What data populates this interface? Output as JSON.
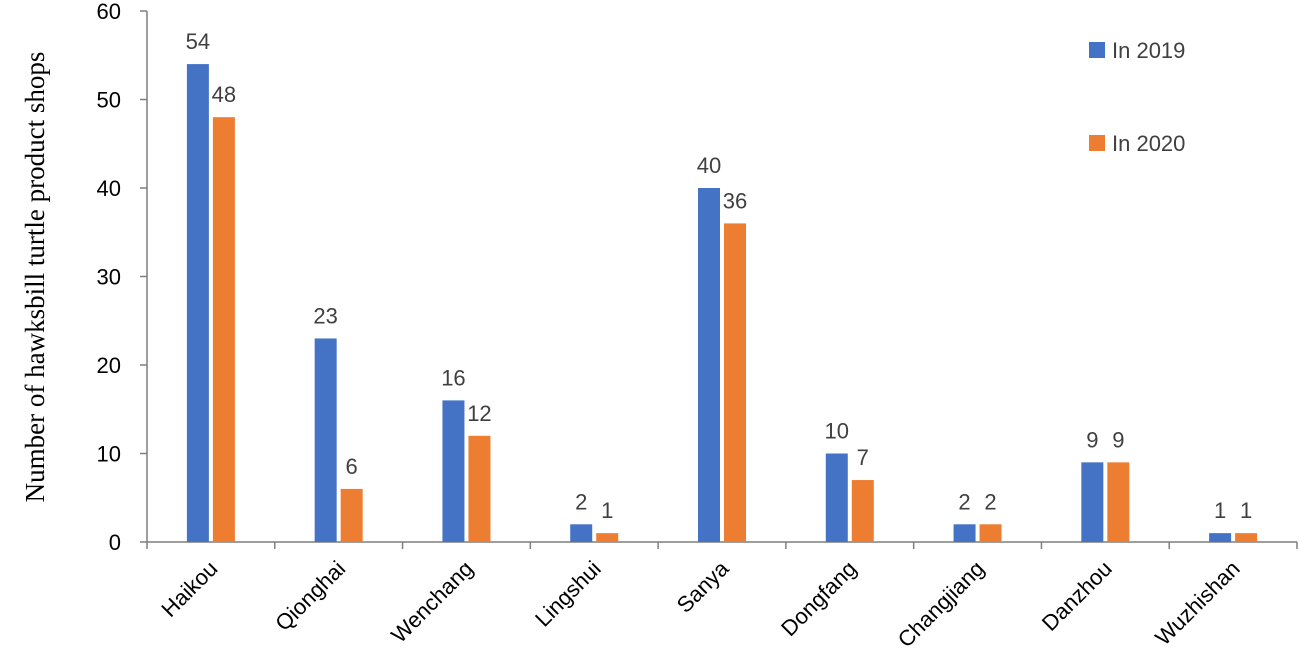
{
  "chart_data": {
    "type": "bar",
    "categories": [
      "Haikou",
      "Qionghai",
      "Wenchang",
      "Lingshui",
      "Sanya",
      "Dongfang",
      "Changjiang",
      "Danzhou",
      "Wuzhishan"
    ],
    "series": [
      {
        "name": "In 2019",
        "values": [
          54,
          23,
          16,
          2,
          40,
          10,
          2,
          9,
          1
        ],
        "color": "#4472C4"
      },
      {
        "name": "In 2020",
        "values": [
          48,
          6,
          12,
          1,
          36,
          7,
          2,
          9,
          1
        ],
        "color": "#ED7D31"
      }
    ],
    "title": "",
    "xlabel": "",
    "ylabel": "Number of hawksbill turtle product shops",
    "ylim": [
      0,
      60
    ],
    "yticks": [
      0,
      10,
      20,
      30,
      40,
      50,
      60
    ],
    "grid": false,
    "legend_position": "top-right",
    "data_labels": true
  }
}
